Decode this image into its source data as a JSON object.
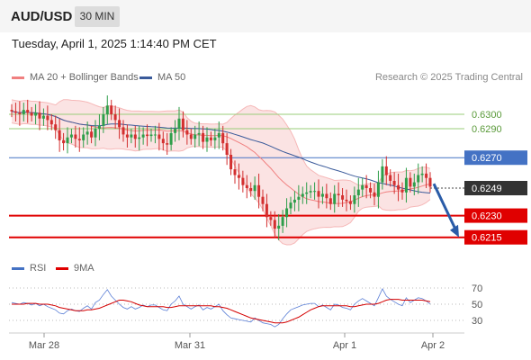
{
  "header": {
    "pair": "AUD/USD",
    "timeframe": "30 MIN",
    "datetime": "Tuesday, April 1, 2025 1:14:40 PM CET"
  },
  "credit": "Research © 2025 Trading Central",
  "legend": {
    "ma20_bb": "MA 20 + Bollinger Bands",
    "ma50": "MA 50",
    "rsi": "RSI",
    "rsi_ma": "9MA"
  },
  "colors": {
    "up": "#2e9e4a",
    "down": "#d32f2f",
    "ma20": "#f08080",
    "ma50": "#3a5a9a",
    "band_fill": "#fbe0e0",
    "support": "#e00000",
    "resistance_blue": "#4472c4",
    "resistance_green": "#9acd7a",
    "arrow": "#2a5ca8",
    "current": "#333333"
  },
  "chart_data": [
    {
      "type": "candlestick",
      "price_axis_range": [
        0.6203,
        0.6318
      ],
      "levels": [
        {
          "label": "0.6300",
          "value": 0.63,
          "kind": "resistance",
          "color": "#9acd7a"
        },
        {
          "label": "0.6290",
          "value": 0.629,
          "kind": "resistance",
          "color": "#9acd7a"
        },
        {
          "label": "0.6270",
          "value": 0.627,
          "kind": "pivot",
          "color": "#4472c4"
        },
        {
          "label": "0.6249",
          "value": 0.6249,
          "kind": "current",
          "color": "#333333"
        },
        {
          "label": "0.6230",
          "value": 0.623,
          "kind": "support",
          "color": "#e00000"
        },
        {
          "label": "0.6215",
          "value": 0.6215,
          "kind": "support",
          "color": "#e00000"
        }
      ],
      "x_labels": [
        "Mar 28",
        "Mar 31",
        "Apr 1",
        "Apr 2"
      ],
      "forecast_arrow": {
        "from": 0.6252,
        "to": 0.6215
      },
      "close": [
        0.6302,
        0.6301,
        0.63,
        0.6303,
        0.6301,
        0.6299,
        0.6301,
        0.6297,
        0.6299,
        0.6296,
        0.6293,
        0.6289,
        0.6282,
        0.628,
        0.6284,
        0.6286,
        0.6283,
        0.6282,
        0.6286,
        0.6288,
        0.6284,
        0.629,
        0.6292,
        0.63,
        0.6306,
        0.63,
        0.6296,
        0.6291,
        0.6286,
        0.6284,
        0.6286,
        0.6283,
        0.6284,
        0.6286,
        0.6285,
        0.6286,
        0.6286,
        0.6283,
        0.628,
        0.6279,
        0.6287,
        0.629,
        0.6297,
        0.6289,
        0.6286,
        0.6283,
        0.6286,
        0.6287,
        0.6281,
        0.6284,
        0.6282,
        0.6284,
        0.6287,
        0.628,
        0.6272,
        0.6262,
        0.6258,
        0.6256,
        0.6251,
        0.6249,
        0.6247,
        0.6251,
        0.6243,
        0.6238,
        0.6229,
        0.6227,
        0.6221,
        0.6223,
        0.6229,
        0.6235,
        0.6239,
        0.6241,
        0.6243,
        0.6245,
        0.6246,
        0.6247,
        0.6247,
        0.6243,
        0.6245,
        0.6242,
        0.6238,
        0.6245,
        0.6244,
        0.6241,
        0.624,
        0.6238,
        0.6244,
        0.6248,
        0.6251,
        0.6249,
        0.6246,
        0.6243,
        0.6253,
        0.6264,
        0.6258,
        0.6254,
        0.6251,
        0.6248,
        0.6246,
        0.6256,
        0.625,
        0.6253,
        0.6258,
        0.6259,
        0.6256,
        0.625
      ]
    },
    {
      "type": "line",
      "series": [
        {
          "name": "RSI"
        },
        {
          "name": "9MA"
        }
      ],
      "levels": [
        70,
        50,
        30
      ],
      "ylim": [
        20,
        80
      ],
      "rsi": [
        52,
        51,
        50,
        52,
        51,
        49,
        51,
        48,
        50,
        47,
        45,
        43,
        39,
        38,
        42,
        44,
        42,
        41,
        45,
        48,
        44,
        52,
        55,
        62,
        68,
        60,
        55,
        50,
        46,
        44,
        47,
        44,
        46,
        49,
        47,
        49,
        49,
        46,
        43,
        42,
        50,
        54,
        60,
        50,
        47,
        44,
        47,
        49,
        43,
        46,
        44,
        47,
        50,
        42,
        37,
        33,
        32,
        31,
        30,
        29,
        28,
        33,
        30,
        27,
        26,
        25,
        22,
        25,
        32,
        38,
        43,
        45,
        47,
        49,
        50,
        51,
        51,
        47,
        49,
        46,
        43,
        50,
        49,
        46,
        45,
        43,
        50,
        54,
        57,
        54,
        51,
        48,
        58,
        69,
        60,
        56,
        53,
        50,
        48,
        58,
        52,
        55,
        58,
        57,
        54,
        50
      ],
      "rsi_ma": [
        50,
        50,
        50,
        50,
        51,
        51,
        51,
        50,
        50,
        50,
        49,
        48,
        46,
        45,
        44,
        43,
        42,
        42,
        42,
        43,
        43,
        44,
        45,
        47,
        49,
        51,
        53,
        55,
        55,
        54,
        53,
        51,
        49,
        48,
        47,
        47,
        47,
        47,
        47,
        46,
        46,
        47,
        48,
        48,
        48,
        48,
        48,
        48,
        48,
        48,
        48,
        47,
        47,
        46,
        45,
        43,
        41,
        39,
        37,
        35,
        33,
        32,
        31,
        30,
        29,
        28,
        27,
        27,
        27,
        28,
        30,
        32,
        34,
        37,
        40,
        43,
        45,
        47,
        48,
        48,
        48,
        48,
        48,
        48,
        48,
        47,
        47,
        48,
        49,
        50,
        50,
        50,
        51,
        53,
        55,
        56,
        56,
        56,
        55,
        55,
        55,
        55,
        55,
        55,
        54,
        53
      ]
    }
  ]
}
